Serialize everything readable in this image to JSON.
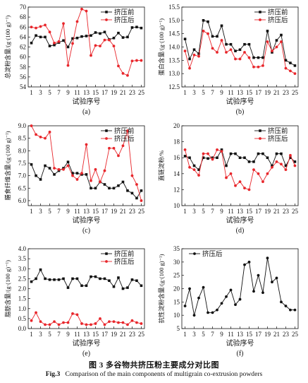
{
  "figure": {
    "caption_cn": "图 3   多谷物共挤压粉主要成分对比图",
    "caption_en_lead": "Fig.3",
    "caption_en_text": "Comparison of the main components of multigrain co-extrusion powders"
  },
  "colors": {
    "before": "#111111",
    "after": "#e8262b"
  },
  "chart_data": [
    {
      "type": "line",
      "panel_label": "(a)",
      "title": "",
      "xlabel": "试验序号",
      "ylabel": "总淀粉含量/(g·(100 g)⁻¹)",
      "ylim": [
        54,
        70
      ],
      "yticks": [
        54,
        56,
        58,
        60,
        62,
        64,
        66,
        68,
        70
      ],
      "x": [
        1,
        2,
        3,
        4,
        5,
        6,
        7,
        8,
        9,
        10,
        11,
        12,
        13,
        14,
        15,
        16,
        17,
        18,
        19,
        20,
        21,
        22,
        23,
        24,
        25
      ],
      "xticks": [
        1,
        3,
        5,
        7,
        9,
        11,
        13,
        15,
        17,
        19,
        21,
        23,
        25
      ],
      "legend": "top-right",
      "series": [
        {
          "name": "挤压前",
          "key": "before",
          "marker": "square",
          "values": [
            62.8,
            64.3,
            64.0,
            64.0,
            62.2,
            62.4,
            62.9,
            63.3,
            62.0,
            63.7,
            63.8,
            64.1,
            64.2,
            64.3,
            64.9,
            64.7,
            65.0,
            63.5,
            63.8,
            64.8,
            63.9,
            64.0,
            65.9,
            66.0,
            65.8
          ]
        },
        {
          "name": "挤压后",
          "key": "after",
          "marker": "dot",
          "values": [
            66.0,
            65.8,
            66.1,
            66.4,
            65.0,
            62.8,
            63.1,
            66.7,
            58.3,
            62.7,
            67.1,
            69.6,
            69.2,
            60.3,
            62.3,
            62.2,
            63.4,
            63.4,
            62.2,
            58.2,
            56.7,
            56.3,
            59.2,
            59.3,
            59.3
          ]
        }
      ]
    },
    {
      "type": "line",
      "panel_label": "(b)",
      "title": "",
      "xlabel": "试验序号",
      "ylabel": "蛋白含量/(g·(100 g)⁻¹)",
      "ylim": [
        12.5,
        15.5
      ],
      "yticks": [
        12.5,
        13.0,
        13.5,
        14.0,
        14.5,
        15.0,
        15.5
      ],
      "x": [
        1,
        2,
        3,
        4,
        5,
        6,
        7,
        8,
        9,
        10,
        11,
        12,
        13,
        14,
        15,
        16,
        17,
        18,
        19,
        20,
        21,
        22,
        23,
        24,
        25
      ],
      "xticks": [
        1,
        3,
        5,
        7,
        9,
        11,
        13,
        15,
        17,
        19,
        21,
        23,
        25
      ],
      "legend": "top-right",
      "series": [
        {
          "name": "挤压前",
          "key": "before",
          "marker": "square",
          "values": [
            14.3,
            13.55,
            13.9,
            13.75,
            15.0,
            14.95,
            14.4,
            14.4,
            14.8,
            14.1,
            14.1,
            13.85,
            13.9,
            14.1,
            14.1,
            13.6,
            13.6,
            13.6,
            14.6,
            13.8,
            14.25,
            14.45,
            13.5,
            13.4,
            13.3
          ]
        },
        {
          "name": "挤压后",
          "key": "after",
          "marker": "dot",
          "values": [
            13.85,
            13.2,
            13.7,
            13.65,
            14.6,
            14.5,
            13.95,
            13.8,
            14.25,
            13.8,
            13.9,
            13.55,
            13.55,
            13.8,
            13.6,
            13.25,
            13.25,
            13.3,
            14.2,
            13.85,
            14.0,
            14.2,
            13.2,
            13.1,
            13.0
          ]
        }
      ]
    },
    {
      "type": "line",
      "panel_label": "(c)",
      "title": "",
      "xlabel": "试验序号",
      "ylabel": "膳食纤维含量/(g·(100 g)⁻¹)",
      "ylim": [
        5.8,
        9.0
      ],
      "yticks": [
        6.0,
        6.5,
        7.0,
        7.5,
        8.0,
        8.5,
        9.0
      ],
      "x": [
        1,
        2,
        3,
        4,
        5,
        6,
        7,
        8,
        9,
        10,
        11,
        12,
        13,
        14,
        15,
        16,
        17,
        18,
        19,
        20,
        21,
        22,
        23,
        24,
        25
      ],
      "xticks": [
        1,
        3,
        5,
        7,
        9,
        11,
        13,
        15,
        17,
        19,
        21,
        23,
        25
      ],
      "legend": "top-right",
      "series": [
        {
          "name": "挤压前",
          "key": "before",
          "marker": "square",
          "values": [
            7.45,
            7.0,
            6.85,
            7.4,
            7.3,
            7.05,
            7.2,
            7.3,
            7.55,
            7.1,
            7.1,
            7.05,
            7.05,
            6.5,
            6.5,
            6.75,
            6.65,
            6.5,
            6.5,
            6.6,
            6.75,
            6.4,
            6.3,
            6.1,
            6.4
          ]
        },
        {
          "name": "挤压后",
          "key": "after",
          "marker": "dot",
          "values": [
            9.0,
            8.65,
            8.55,
            8.5,
            8.75,
            7.3,
            7.25,
            7.25,
            7.4,
            7.0,
            6.85,
            7.1,
            8.25,
            6.8,
            7.25,
            6.75,
            7.2,
            8.1,
            8.1,
            7.8,
            8.2,
            8.8,
            7.0,
            6.65,
            6.0
          ]
        }
      ]
    },
    {
      "type": "line",
      "panel_label": "(d)",
      "title": "",
      "xlabel": "试验序号",
      "ylabel": "直链淀粉/%",
      "ylim": [
        10,
        20
      ],
      "yticks": [
        10,
        12,
        14,
        16,
        18,
        20
      ],
      "x": [
        1,
        2,
        3,
        4,
        5,
        6,
        7,
        8,
        9,
        10,
        11,
        12,
        13,
        14,
        15,
        16,
        17,
        18,
        19,
        20,
        21,
        22,
        23,
        24,
        25
      ],
      "xticks": [
        1,
        3,
        5,
        7,
        9,
        11,
        13,
        15,
        17,
        19,
        21,
        23,
        25
      ],
      "legend": "top-right",
      "series": [
        {
          "name": "挤压前",
          "key": "before",
          "marker": "square",
          "values": [
            16.2,
            16.0,
            15.0,
            14.5,
            16.0,
            15.9,
            16.0,
            16.0,
            17.0,
            15.0,
            16.5,
            16.5,
            16.0,
            16.0,
            15.5,
            15.5,
            16.5,
            16.5,
            16.0,
            15.0,
            16.5,
            16.5,
            15.0,
            16.0,
            15.5
          ]
        },
        {
          "name": "挤压后",
          "key": "after",
          "marker": "dot",
          "values": [
            17.0,
            14.8,
            14.5,
            13.8,
            16.5,
            16.5,
            15.8,
            17.0,
            16.8,
            13.5,
            14.0,
            12.5,
            13.0,
            12.2,
            12.0,
            14.5,
            14.0,
            13.0,
            14.0,
            14.8,
            15.5,
            15.2,
            14.5,
            16.3,
            15.0
          ]
        }
      ]
    },
    {
      "type": "line",
      "panel_label": "(e)",
      "title": "",
      "xlabel": "试验序号",
      "ylabel": "脂肪含量/(g·(100 g)⁻¹)",
      "ylim": [
        0,
        4.0
      ],
      "yticks": [
        0,
        0.5,
        1.0,
        1.5,
        2.0,
        2.5,
        3.0,
        3.5,
        4.0
      ],
      "x": [
        1,
        2,
        3,
        4,
        5,
        6,
        7,
        8,
        9,
        10,
        11,
        12,
        13,
        14,
        15,
        16,
        17,
        18,
        19,
        20,
        21,
        22,
        23,
        24,
        25
      ],
      "xticks": [
        1,
        3,
        5,
        7,
        9,
        11,
        13,
        15,
        17,
        19,
        21,
        23,
        25
      ],
      "legend": "top-right",
      "series": [
        {
          "name": "挤压前",
          "key": "before",
          "marker": "square",
          "values": [
            2.35,
            2.5,
            2.95,
            2.5,
            2.45,
            2.45,
            2.45,
            2.5,
            2.05,
            2.5,
            2.5,
            2.15,
            2.15,
            2.6,
            2.6,
            2.5,
            2.5,
            2.4,
            2.1,
            2.55,
            2.0,
            2.05,
            2.45,
            2.4,
            2.15
          ]
        },
        {
          "name": "挤压后",
          "key": "after",
          "marker": "dot",
          "values": [
            0.4,
            0.8,
            0.35,
            0.2,
            0.2,
            0.35,
            0.2,
            0.3,
            0.3,
            0.75,
            0.7,
            0.25,
            0.2,
            0.2,
            0.25,
            0.5,
            0.2,
            0.35,
            0.35,
            0.3,
            0.3,
            0.2,
            0.4,
            0.3,
            0.25
          ]
        }
      ]
    },
    {
      "type": "line",
      "panel_label": "(f)",
      "title": "",
      "xlabel": "试验序号",
      "ylabel": "抗性淀粉含量/(g·(100 g)⁻¹)",
      "ylim": [
        5,
        35
      ],
      "yticks": [
        5,
        10,
        15,
        20,
        25,
        30,
        35
      ],
      "x": [
        1,
        2,
        3,
        4,
        5,
        6,
        7,
        8,
        9,
        10,
        11,
        12,
        13,
        14,
        15,
        16,
        17,
        18,
        19,
        20,
        21,
        22,
        23,
        24,
        25
      ],
      "xticks": [
        1,
        3,
        5,
        7,
        9,
        11,
        13,
        15,
        17,
        19,
        21,
        23,
        25
      ],
      "legend": "top-left",
      "series": [
        {
          "name": "挤压后",
          "key": "after_f",
          "marker": "dot-black",
          "values": [
            13.5,
            20.0,
            10.0,
            16.5,
            20.5,
            11.0,
            11.0,
            12.0,
            14.5,
            17.0,
            19.5,
            14.0,
            16.0,
            29.0,
            30.0,
            19.0,
            25.0,
            18.5,
            31.5,
            22.5,
            24.0,
            15.0,
            13.5,
            12.0,
            12.0
          ]
        }
      ]
    }
  ]
}
